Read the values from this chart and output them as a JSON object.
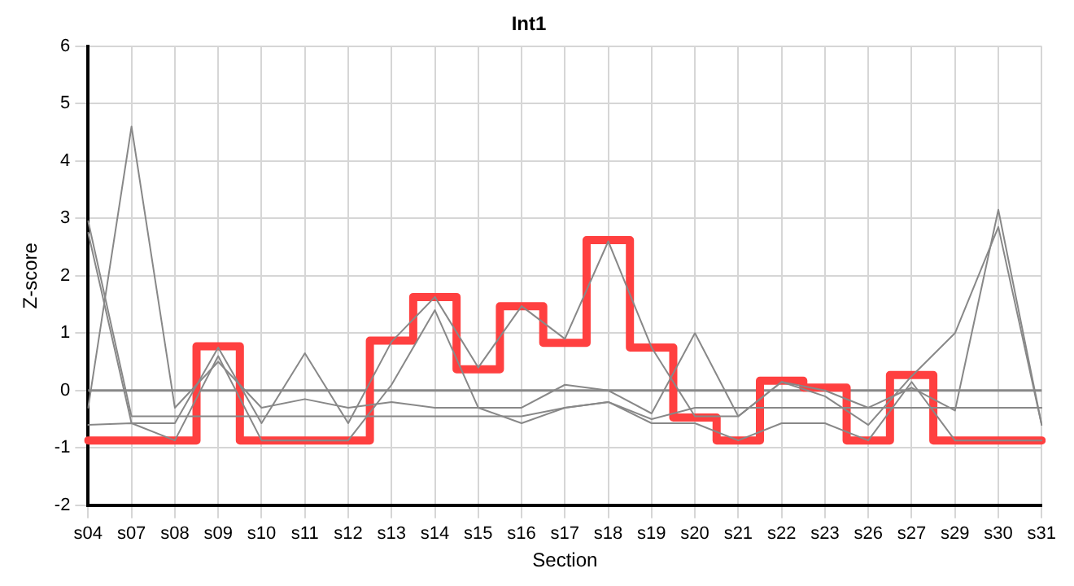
{
  "chart_data": {
    "type": "line",
    "title": "Int1",
    "xlabel": "Section",
    "ylabel": "Z-score",
    "categories": [
      "s04",
      "s07",
      "s08",
      "s09",
      "s10",
      "s11",
      "s12",
      "s13",
      "s14",
      "s15",
      "s16",
      "s17",
      "s18",
      "s19",
      "s20",
      "s21",
      "s22",
      "s23",
      "s26",
      "s27",
      "s29",
      "s30",
      "s31"
    ],
    "series": [
      {
        "color": "#888888",
        "values": [
          2.95,
          -0.45,
          -0.45,
          -0.45,
          -0.45,
          -0.45,
          -0.45,
          -0.45,
          -0.45,
          -0.45,
          -0.45,
          -0.3,
          -0.2,
          -0.5,
          -0.3,
          -0.3,
          -0.3,
          -0.3,
          -0.3,
          -0.3,
          -0.3,
          -0.3,
          -0.3
        ]
      },
      {
        "color": "#888888",
        "values": [
          -0.3,
          4.6,
          -0.3,
          0.5,
          -0.3,
          -0.15,
          -0.3,
          -0.2,
          -0.3,
          -0.3,
          -0.3,
          0.1,
          0.0,
          -0.4,
          1.0,
          -0.45,
          0.15,
          -0.1,
          -0.6,
          0.25,
          1.0,
          2.85,
          -0.6
        ]
      },
      {
        "color": "#888888",
        "values": [
          2.75,
          -0.57,
          -0.57,
          0.75,
          -0.57,
          0.65,
          -0.57,
          0.85,
          1.63,
          0.4,
          1.47,
          0.9,
          2.6,
          0.75,
          -0.45,
          -0.45,
          0.15,
          0.0,
          -0.3,
          0.05,
          -0.35,
          3.15,
          -0.6
        ]
      },
      {
        "color": "#888888",
        "values": [
          -0.6,
          -0.57,
          -0.87,
          0.6,
          -0.87,
          -0.87,
          -0.87,
          0.1,
          1.4,
          -0.3,
          -0.57,
          -0.3,
          -0.2,
          -0.57,
          -0.57,
          -0.87,
          -0.57,
          -0.57,
          -0.87,
          0.15,
          -0.87,
          -0.87,
          -0.87
        ]
      },
      {
        "type": "step",
        "color": "#ff4040",
        "values": [
          -0.87,
          -0.87,
          -0.87,
          0.77,
          -0.87,
          -0.87,
          -0.87,
          0.87,
          1.63,
          0.37,
          1.47,
          0.83,
          2.62,
          0.75,
          -0.47,
          -0.87,
          0.17,
          0.05,
          -0.87,
          0.27,
          -0.87,
          -0.87,
          -0.87
        ]
      }
    ],
    "ylim": [
      -2,
      6
    ],
    "yticks": [
      -2,
      -1,
      0,
      1,
      2,
      3,
      4,
      5,
      6
    ],
    "grid": true,
    "legend": false,
    "ref_lines": [
      {
        "axis": "y",
        "value": 0,
        "color": "#888888"
      }
    ]
  }
}
